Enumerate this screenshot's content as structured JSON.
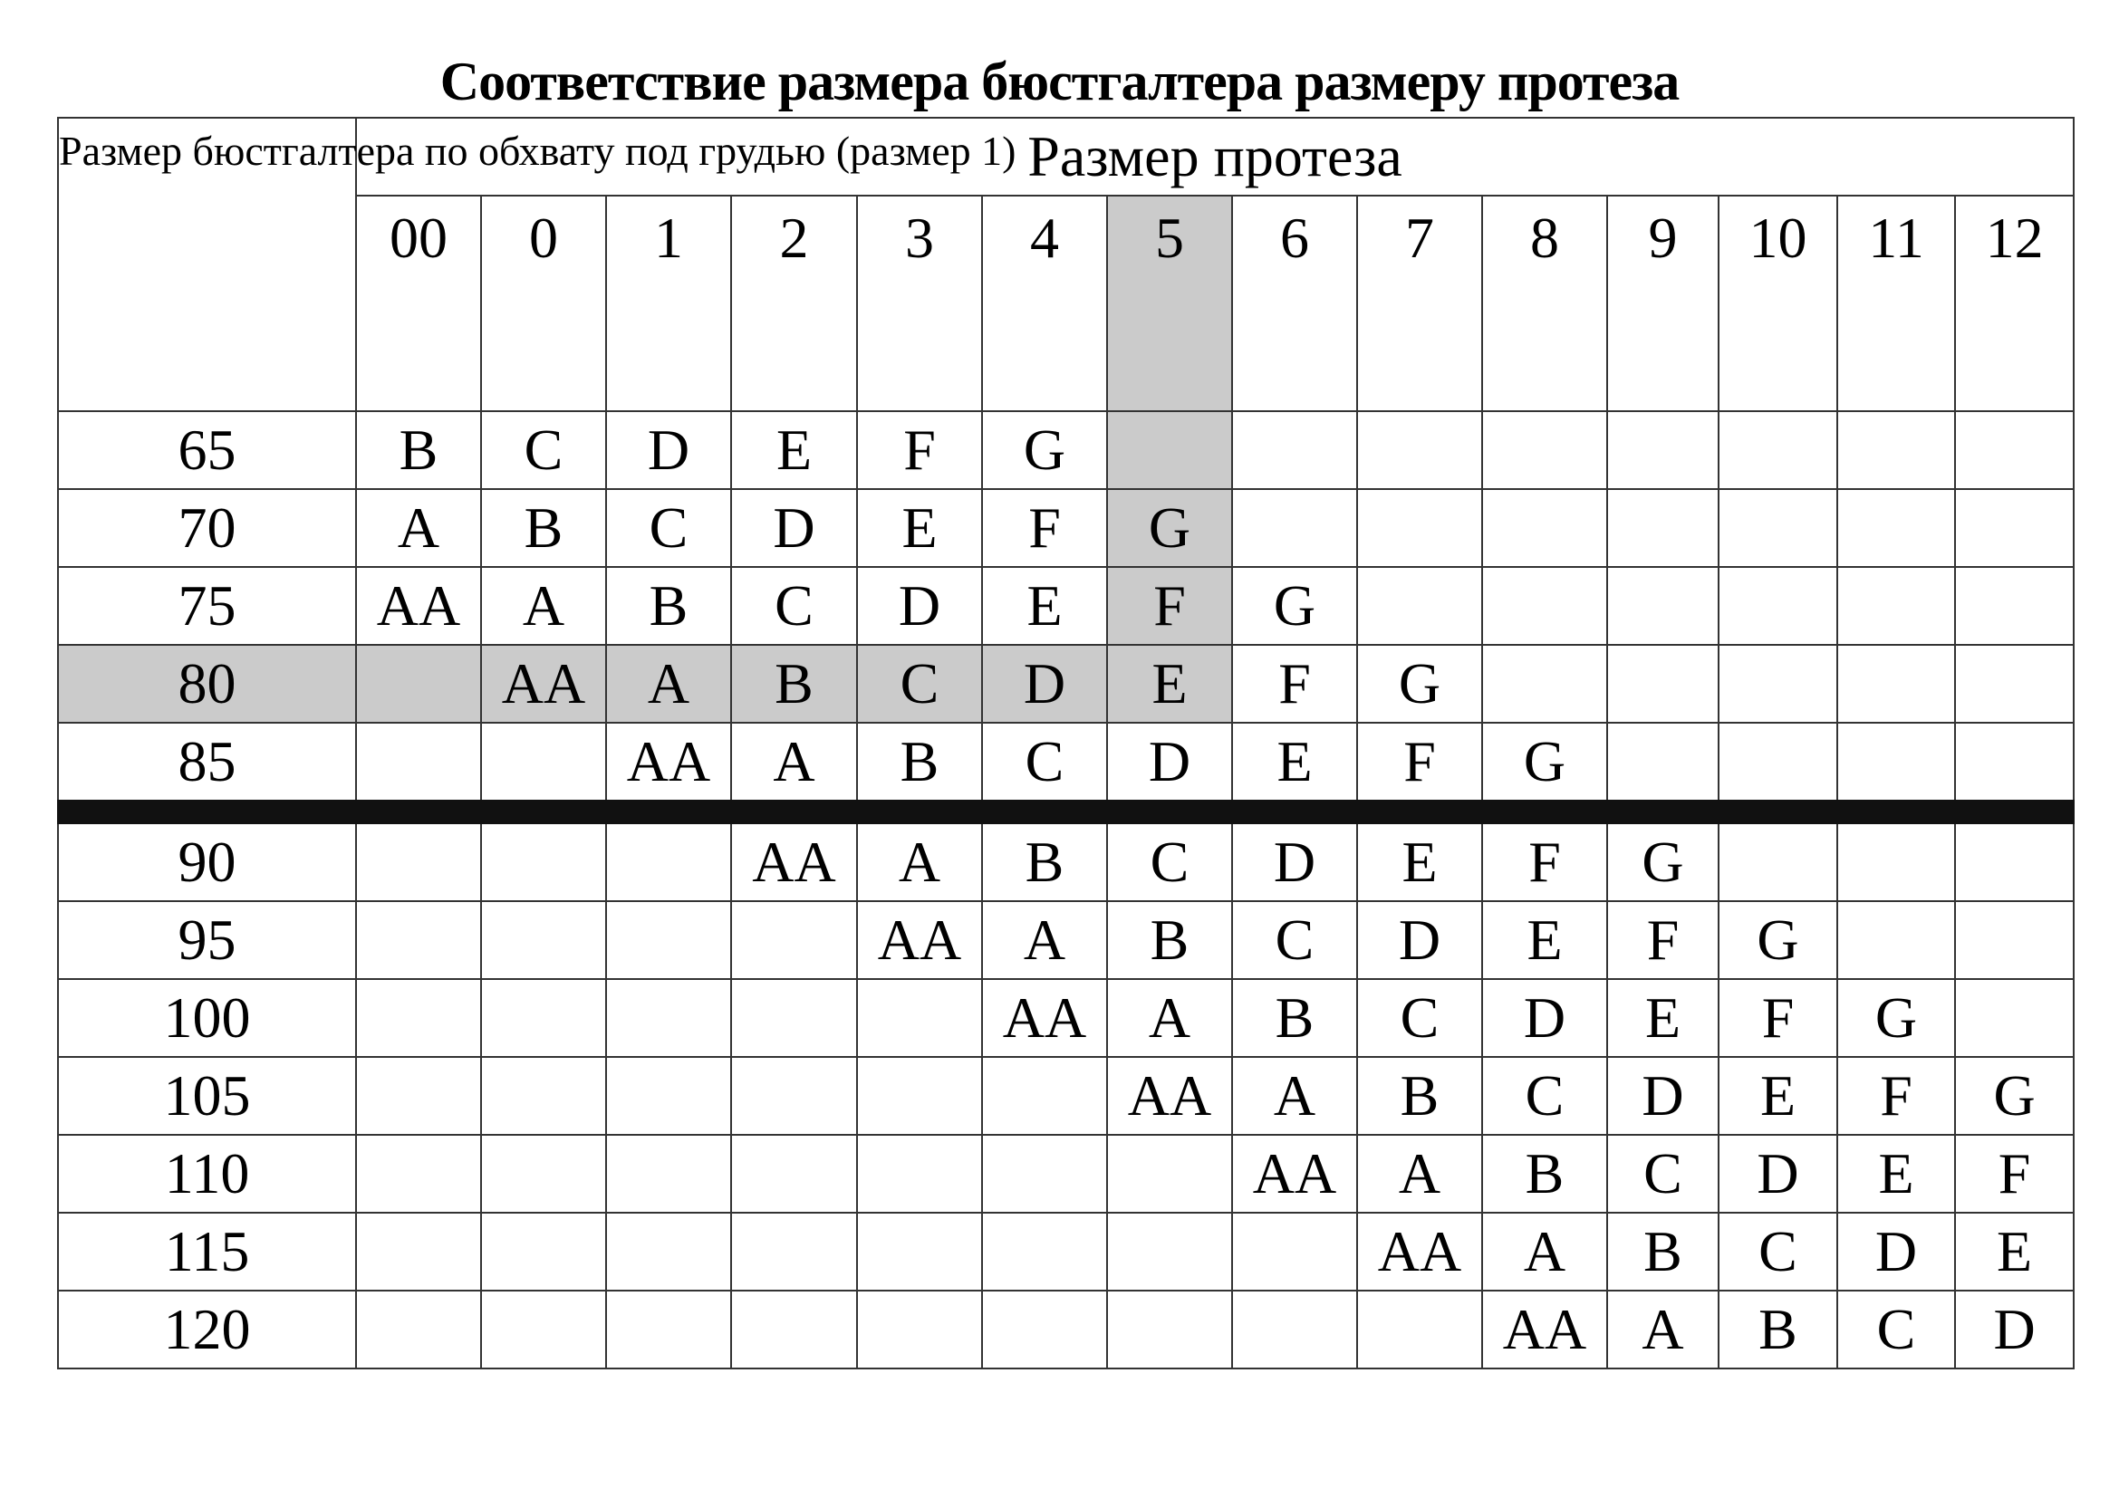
{
  "title": "Соответствие размера бюстгалтера размеру протеза",
  "corner_header": "Размер бюстгалтера по обхвату под грудью (размер 1)",
  "prosthesis_header": "Размер протеза",
  "highlight_color": "#cbcbcb",
  "highlight": {
    "column": "5",
    "row": "80"
  },
  "columns": [
    "00",
    "0",
    "1",
    "2",
    "3",
    "4",
    "5",
    "6",
    "7",
    "8",
    "9",
    "10",
    "11",
    "12"
  ],
  "rows": [
    {
      "band": "65",
      "cells": [
        "B",
        "C",
        "D",
        "E",
        "F",
        "G",
        "",
        "",
        "",
        "",
        "",
        "",
        "",
        ""
      ]
    },
    {
      "band": "70",
      "cells": [
        "A",
        "B",
        "C",
        "D",
        "E",
        "F",
        "G",
        "",
        "",
        "",
        "",
        "",
        "",
        ""
      ]
    },
    {
      "band": "75",
      "cells": [
        "AA",
        "A",
        "B",
        "C",
        "D",
        "E",
        "F",
        "G",
        "",
        "",
        "",
        "",
        "",
        ""
      ]
    },
    {
      "band": "80",
      "cells": [
        "",
        "AA",
        "A",
        "B",
        "C",
        "D",
        "E",
        "F",
        "G",
        "",
        "",
        "",
        "",
        ""
      ]
    },
    {
      "band": "85",
      "cells": [
        "",
        "",
        "AA",
        "A",
        "B",
        "C",
        "D",
        "E",
        "F",
        "G",
        "",
        "",
        "",
        ""
      ]
    },
    {
      "band": "90",
      "cells": [
        "",
        "",
        "",
        "AA",
        "A",
        "B",
        "C",
        "D",
        "E",
        "F",
        "G",
        "",
        "",
        ""
      ]
    },
    {
      "band": "95",
      "cells": [
        "",
        "",
        "",
        "",
        "AA",
        "A",
        "B",
        "C",
        "D",
        "E",
        "F",
        "G",
        "",
        ""
      ]
    },
    {
      "band": "100",
      "cells": [
        "",
        "",
        "",
        "",
        "",
        "AA",
        "A",
        "B",
        "C",
        "D",
        "E",
        "F",
        "G",
        ""
      ]
    },
    {
      "band": "105",
      "cells": [
        "",
        "",
        "",
        "",
        "",
        "",
        "AA",
        "A",
        "B",
        "C",
        "D",
        "E",
        "F",
        "G"
      ]
    },
    {
      "band": "110",
      "cells": [
        "",
        "",
        "",
        "",
        "",
        "",
        "",
        "AA",
        "A",
        "B",
        "C",
        "D",
        "E",
        "F"
      ]
    },
    {
      "band": "115",
      "cells": [
        "",
        "",
        "",
        "",
        "",
        "",
        "",
        "",
        "AA",
        "A",
        "B",
        "C",
        "D",
        "E"
      ]
    },
    {
      "band": "120",
      "cells": [
        "",
        "",
        "",
        "",
        "",
        "",
        "",
        "",
        "",
        "AA",
        "A",
        "B",
        "C",
        "D"
      ]
    }
  ]
}
